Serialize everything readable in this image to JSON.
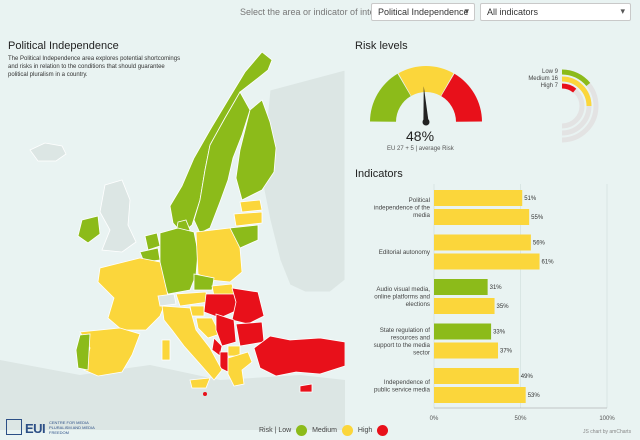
{
  "topbar": {
    "label": "Select the area or indicator of interest",
    "area_select": "Political Independence",
    "indicator_select": "All indicators"
  },
  "map_panel": {
    "title": "Political Independence",
    "description": "The Political Independence area explores potential shortcomings and risks in relation to the conditions that should guarantee political pluralism in a country."
  },
  "legend": {
    "label": "Risk",
    "items": [
      {
        "label": "Low",
        "color": "#8cbb1a"
      },
      {
        "label": "Medium",
        "color": "#fbd63b"
      },
      {
        "label": "High",
        "color": "#e8101a"
      }
    ]
  },
  "logo": {
    "text": "EUI",
    "subtitle": "CENTRE FOR MEDIA PLURALISM AND MEDIA FREEDOM"
  },
  "risk_levels": {
    "title": "Risk levels",
    "value": "48%",
    "caption": "EU 27 + 5 | average Risk",
    "needle_percent": 48,
    "counts": [
      {
        "label": "Low",
        "value": 9,
        "color": "#8cbb1a"
      },
      {
        "label": "Medium",
        "value": 16,
        "color": "#fbd63b"
      },
      {
        "label": "High",
        "value": 7,
        "color": "#e8101a"
      }
    ]
  },
  "indicators": {
    "title": "Indicators",
    "axis_ticks": [
      "0%",
      "50%",
      "100%"
    ],
    "credit": "JS chart by amCharts"
  },
  "chart_data": {
    "type": "bar",
    "orientation": "horizontal",
    "categories": [
      "Political independence of the media",
      "Editorial autonomy",
      "Audio visual media, online platforms and elections",
      "State regulation of resources and support to the media sector",
      "Independence of public service media"
    ],
    "category_lines": [
      [
        "Political",
        "independence of the",
        "media"
      ],
      [
        "Editorial autonomy"
      ],
      [
        "Audio visual media,",
        "online platforms and",
        "elections"
      ],
      [
        "State regulation of",
        "resources and",
        "support to the media",
        "sector"
      ],
      [
        "Independence of",
        "public service media"
      ]
    ],
    "series": [
      {
        "values": [
          51,
          56,
          31,
          33,
          49
        ],
        "colors": [
          "#fbd63b",
          "#fbd63b",
          "#8cbb1a",
          "#8cbb1a",
          "#fbd63b"
        ]
      },
      {
        "values": [
          55,
          61,
          35,
          37,
          53
        ],
        "colors": [
          "#fbd63b",
          "#fbd63b",
          "#fbd63b",
          "#fbd63b",
          "#fbd63b"
        ]
      }
    ],
    "xlim": [
      0,
      100
    ],
    "x_ticks": [
      "0%",
      "50%",
      "100%"
    ]
  }
}
